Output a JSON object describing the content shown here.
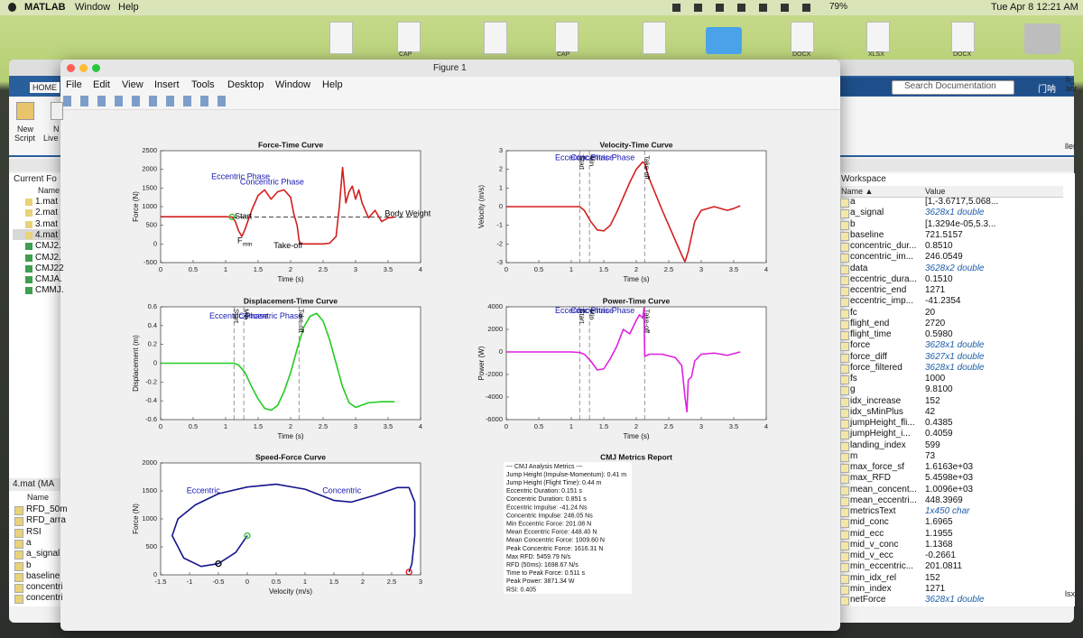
{
  "menubar": {
    "app": "MATLAB",
    "items": [
      "Window",
      "Help"
    ],
    "battery": "79%",
    "clock": "Tue Apr 8  12:21 AM"
  },
  "desktop": {
    "labels": [
      "CAP",
      "CAP",
      "DOCX",
      "XLSX",
      "DOCX"
    ]
  },
  "matlab": {
    "tab": "HOME",
    "new_script": [
      "New",
      "Script"
    ],
    "new_live": [
      "N",
      "Live"
    ],
    "folder_title": "Current Fo",
    "folder_header": "Name",
    "files": [
      "1.mat",
      "2.mat",
      "3.mat",
      "4.mat",
      "CMJ2.",
      "CMJ2.",
      "CMJ22",
      "CMJA.",
      "CMMJ."
    ],
    "details_title": "4.mat (MA",
    "details_header": "Name",
    "details": [
      "RFD_50m",
      "RFD_arra",
      "RSI",
      "a",
      "a_signal",
      "b",
      "baseline",
      "concentri",
      "concentri"
    ],
    "search": "Search Documentation",
    "user": "门呐",
    "edge_fragments": [
      "b_",
      "sor",
      "ller",
      "lsx"
    ]
  },
  "workspace": {
    "title": "Workspace",
    "columns": [
      "Name ▲",
      "Value"
    ],
    "rows": [
      {
        "name": "a",
        "value": "[1,-3.6717,5.068..."
      },
      {
        "name": "a_signal",
        "value": "3628x1 double",
        "italic": true
      },
      {
        "name": "b",
        "value": "[1.3294e-05,5.3..."
      },
      {
        "name": "baseline",
        "value": "721.5157"
      },
      {
        "name": "concentric_dur...",
        "value": "0.8510"
      },
      {
        "name": "concentric_im...",
        "value": "246.0549"
      },
      {
        "name": "data",
        "value": "3628x2 double",
        "italic": true
      },
      {
        "name": "eccentric_dura...",
        "value": "0.1510"
      },
      {
        "name": "eccentric_end",
        "value": "1271"
      },
      {
        "name": "eccentric_imp...",
        "value": "-41.2354"
      },
      {
        "name": "fc",
        "value": "20"
      },
      {
        "name": "flight_end",
        "value": "2720"
      },
      {
        "name": "flight_time",
        "value": "0.5980"
      },
      {
        "name": "force",
        "value": "3628x1 double",
        "italic": true
      },
      {
        "name": "force_diff",
        "value": "3627x1 double",
        "italic": true
      },
      {
        "name": "force_filtered",
        "value": "3628x1 double",
        "italic": true
      },
      {
        "name": "fs",
        "value": "1000"
      },
      {
        "name": "g",
        "value": "9.8100"
      },
      {
        "name": "idx_increase",
        "value": "152"
      },
      {
        "name": "idx_sMinPlus",
        "value": "42"
      },
      {
        "name": "jumpHeight_fli...",
        "value": "0.4385"
      },
      {
        "name": "jumpHeight_i...",
        "value": "0.4059"
      },
      {
        "name": "landing_index",
        "value": "599"
      },
      {
        "name": "m",
        "value": "73"
      },
      {
        "name": "max_force_sf",
        "value": "1.6163e+03"
      },
      {
        "name": "max_RFD",
        "value": "5.4598e+03"
      },
      {
        "name": "mean_concent...",
        "value": "1.0096e+03"
      },
      {
        "name": "mean_eccentri...",
        "value": "448.3969"
      },
      {
        "name": "metricsText",
        "value": "1x450 char",
        "italic": true
      },
      {
        "name": "mid_conc",
        "value": "1.6965"
      },
      {
        "name": "mid_ecc",
        "value": "1.1955"
      },
      {
        "name": "mid_v_conc",
        "value": "1.1368"
      },
      {
        "name": "mid_v_ecc",
        "value": "-0.2661"
      },
      {
        "name": "min_eccentric...",
        "value": "201.0811"
      },
      {
        "name": "min_idx_rel",
        "value": "152"
      },
      {
        "name": "min_index",
        "value": "1271"
      },
      {
        "name": "netForce",
        "value": "3628x1 double",
        "italic": true
      }
    ]
  },
  "figure": {
    "title": "Figure 1",
    "menu": [
      "File",
      "Edit",
      "View",
      "Insert",
      "Tools",
      "Desktop",
      "Window",
      "Help"
    ]
  },
  "chart_data": [
    {
      "type": "line",
      "title": "Force-Time Curve",
      "xlabel": "Time (s)",
      "ylabel": "Force (N)",
      "xlim": [
        0,
        4
      ],
      "xticks": [
        0,
        0.5,
        1,
        1.5,
        2,
        2.5,
        3,
        3.5,
        4
      ],
      "ylim": [
        -500,
        2500
      ],
      "yticks": [
        -500,
        0,
        500,
        1000,
        1500,
        2000,
        2500
      ],
      "grid": false,
      "series": [
        {
          "color": "#d41e1e",
          "x": [
            0,
            0.5,
            1.0,
            1.1,
            1.15,
            1.2,
            1.25,
            1.3,
            1.4,
            1.5,
            1.6,
            1.7,
            1.8,
            1.9,
            2.0,
            2.05,
            2.1,
            2.13,
            2.15,
            2.5,
            2.6,
            2.7,
            2.75,
            2.8,
            2.85,
            2.9,
            2.95,
            3.0,
            3.05,
            3.1,
            3.2,
            3.3,
            3.4,
            3.5,
            3.6
          ],
          "values": [
            730,
            730,
            730,
            720,
            600,
            350,
            201,
            400,
            900,
            1300,
            1450,
            1200,
            1400,
            1450,
            1250,
            800,
            500,
            100,
            0,
            0,
            20,
            200,
            1000,
            2050,
            1100,
            1400,
            1550,
            1200,
            1450,
            1100,
            700,
            900,
            600,
            700,
            720
          ]
        },
        {
          "color": "#2fbf2f",
          "marker": "circle",
          "x": [
            1.1
          ],
          "values": [
            725
          ]
        }
      ],
      "hlines": [
        {
          "value": 721.5,
          "color": "#444444",
          "style": "dashed"
        }
      ],
      "annotations": [
        {
          "text": "Eccentric Phase",
          "x": 0.78,
          "y": 1800,
          "color": "#1a1ab4"
        },
        {
          "text": "Concentric Phase",
          "x": 1.22,
          "y": 1650,
          "color": "#1a1ab4"
        },
        {
          "text": "Start",
          "x": 1.14,
          "y": 730,
          "color": "#000000"
        },
        {
          "text": "F",
          "sub": "min",
          "x": 1.18,
          "y": 80,
          "color": "#000000"
        },
        {
          "text": "Take-off",
          "x": 1.74,
          "y": -50,
          "color": "#000000"
        },
        {
          "text": "Body Weight",
          "x": 3.45,
          "y": 800,
          "color": "#000000"
        }
      ]
    },
    {
      "type": "line",
      "title": "Velocity-Time Curve",
      "xlabel": "Time (s)",
      "ylabel": "Velocity (m/s)",
      "xlim": [
        0,
        4
      ],
      "xticks": [
        0,
        0.5,
        1,
        1.5,
        2,
        2.5,
        3,
        3.5,
        4
      ],
      "ylim": [
        -3,
        3
      ],
      "yticks": [
        -3,
        -2,
        -1,
        0,
        1,
        2,
        3
      ],
      "grid": false,
      "series": [
        {
          "color": "#d41e1e",
          "x": [
            0,
            0.5,
            1.0,
            1.13,
            1.2,
            1.3,
            1.4,
            1.5,
            1.6,
            1.7,
            1.8,
            1.9,
            2.0,
            2.1,
            2.13,
            2.2,
            2.4,
            2.6,
            2.7,
            2.75,
            2.8,
            2.9,
            3.0,
            3.2,
            3.4,
            3.5,
            3.6
          ],
          "values": [
            0,
            0,
            0,
            0,
            -0.2,
            -0.8,
            -1.25,
            -1.3,
            -1.0,
            -0.3,
            0.5,
            1.3,
            2.0,
            2.4,
            2.3,
            1.5,
            -0.2,
            -1.8,
            -2.6,
            -2.95,
            -2.4,
            -0.8,
            -0.2,
            0,
            -0.2,
            -0.1,
            0.05
          ]
        }
      ],
      "vlines": [
        {
          "value": 1.13,
          "color": "#999999",
          "style": "dashed"
        },
        {
          "value": 1.28,
          "color": "#999999",
          "style": "dashed"
        },
        {
          "value": 2.13,
          "color": "#999999",
          "style": "dashed"
        }
      ],
      "annotations": [
        {
          "text": "Eccentric Phase",
          "x": 0.75,
          "y": 2.6,
          "color": "#1a1ab4"
        },
        {
          "text": "Concentric Phase",
          "x": 0.99,
          "y": 2.6,
          "color": "#1a1ab4"
        },
        {
          "text": "Start",
          "x": 1.16,
          "y": 2.75,
          "color": "#000000",
          "vertical": true
        },
        {
          "text": "Min",
          "x": 1.31,
          "y": 2.75,
          "color": "#000000",
          "vertical": true
        },
        {
          "text": "Take-off",
          "x": 2.16,
          "y": 2.75,
          "color": "#000000",
          "vertical": true
        }
      ]
    },
    {
      "type": "line",
      "title": "Displacement-Time Curve",
      "xlabel": "Time (s)",
      "ylabel": "Displacement (m)",
      "xlim": [
        0,
        4
      ],
      "xticks": [
        0,
        0.5,
        1,
        1.5,
        2,
        2.5,
        3,
        3.5,
        4
      ],
      "ylim": [
        -0.6,
        0.6
      ],
      "yticks": [
        -0.6,
        -0.4,
        -0.2,
        0,
        0.2,
        0.4,
        0.6
      ],
      "grid": false,
      "series": [
        {
          "color": "#22cc22",
          "x": [
            0,
            0.5,
            1.0,
            1.13,
            1.2,
            1.3,
            1.4,
            1.5,
            1.6,
            1.7,
            1.8,
            1.9,
            2.0,
            2.1,
            2.2,
            2.3,
            2.4,
            2.5,
            2.6,
            2.7,
            2.8,
            2.9,
            3.0,
            3.2,
            3.4,
            3.6
          ],
          "values": [
            0,
            0,
            0,
            0,
            -0.02,
            -0.1,
            -0.25,
            -0.38,
            -0.48,
            -0.5,
            -0.45,
            -0.3,
            -0.1,
            0.15,
            0.38,
            0.5,
            0.53,
            0.45,
            0.25,
            0,
            -0.25,
            -0.42,
            -0.47,
            -0.42,
            -0.41,
            -0.41
          ]
        }
      ],
      "vlines": [
        {
          "value": 1.13,
          "color": "#999999",
          "style": "dashed"
        },
        {
          "value": 1.28,
          "color": "#999999",
          "style": "dashed"
        },
        {
          "value": 2.13,
          "color": "#999999",
          "style": "dashed"
        }
      ],
      "annotations": [
        {
          "text": "Eccentric Phase",
          "x": 0.75,
          "y": 0.5,
          "color": "#1a1ab4"
        },
        {
          "text": "Concentric Phase",
          "x": 1.2,
          "y": 0.5,
          "color": "#1a1ab4"
        },
        {
          "text": "Start",
          "x": 1.16,
          "y": 0.58,
          "color": "#000000",
          "vertical": true
        },
        {
          "text": "Min",
          "x": 1.31,
          "y": 0.58,
          "color": "#000000",
          "vertical": true
        },
        {
          "text": "Take-off",
          "x": 2.16,
          "y": 0.58,
          "color": "#000000",
          "vertical": true
        }
      ]
    },
    {
      "type": "line",
      "title": "Power-Time Curve",
      "xlabel": "Time (s)",
      "ylabel": "Power (W)",
      "xlim": [
        0,
        4
      ],
      "xticks": [
        0,
        0.5,
        1,
        1.5,
        2,
        2.5,
        3,
        3.5,
        4
      ],
      "ylim": [
        -6000,
        4000
      ],
      "yticks": [
        -6000,
        -4000,
        -2000,
        0,
        2000,
        4000
      ],
      "grid": false,
      "series": [
        {
          "color": "#e020e0",
          "x": [
            0,
            1.0,
            1.13,
            1.2,
            1.3,
            1.4,
            1.5,
            1.6,
            1.7,
            1.8,
            1.9,
            2.0,
            2.05,
            2.1,
            2.12,
            2.13,
            2.2,
            2.4,
            2.6,
            2.7,
            2.75,
            2.78,
            2.8,
            2.85,
            2.9,
            3.0,
            3.2,
            3.4,
            3.6
          ],
          "values": [
            0,
            0,
            -50,
            -200,
            -800,
            -1600,
            -1500,
            -600,
            500,
            2000,
            1600,
            2800,
            3300,
            3000,
            3900,
            -400,
            -200,
            -200,
            -500,
            -1200,
            -4000,
            -5300,
            -2500,
            -2200,
            -800,
            -200,
            -100,
            -300,
            0
          ]
        }
      ],
      "vlines": [
        {
          "value": 1.13,
          "color": "#999999",
          "style": "dashed"
        },
        {
          "value": 1.28,
          "color": "#999999",
          "style": "dashed"
        },
        {
          "value": 2.13,
          "color": "#999999",
          "style": "dashed"
        }
      ],
      "annotations": [
        {
          "text": "Eccentric Phase",
          "x": 0.75,
          "y": 3650,
          "color": "#1a1ab4"
        },
        {
          "text": "Concentric Phase",
          "x": 0.99,
          "y": 3650,
          "color": "#1a1ab4"
        },
        {
          "text": "Start",
          "x": 1.16,
          "y": 3800,
          "color": "#000000",
          "vertical": true
        },
        {
          "text": "Min",
          "x": 1.31,
          "y": 3800,
          "color": "#000000",
          "vertical": true
        },
        {
          "text": "Take-off",
          "x": 2.16,
          "y": 3800,
          "color": "#000000",
          "vertical": true
        }
      ]
    },
    {
      "type": "line",
      "title": "Speed-Force Curve",
      "xlabel": "Velocity (m/s)",
      "ylabel": "Force (N)",
      "xlim": [
        -1.5,
        3
      ],
      "xticks": [
        -1.5,
        -1,
        -0.5,
        0,
        0.5,
        1,
        1.5,
        2,
        2.5,
        3
      ],
      "ylim": [
        0,
        2000
      ],
      "yticks": [
        0,
        500,
        1000,
        1500,
        2000
      ],
      "grid": false,
      "series": [
        {
          "color": "#14148c",
          "x": [
            0,
            -0.2,
            -0.5,
            -0.8,
            -1.1,
            -1.3,
            -1.2,
            -0.9,
            -0.5,
            0,
            0.5,
            1.0,
            1.5,
            1.8,
            2.2,
            2.6,
            2.8,
            2.9,
            2.9,
            2.85,
            2.8
          ],
          "values": [
            700,
            400,
            200,
            150,
            300,
            700,
            1000,
            1250,
            1450,
            1570,
            1620,
            1530,
            1330,
            1300,
            1420,
            1560,
            1560,
            1300,
            700,
            200,
            50
          ]
        },
        {
          "color": "#2fbf2f",
          "marker": "circle",
          "x": [
            0
          ],
          "values": [
            700
          ]
        },
        {
          "color": "#000000",
          "marker": "circle",
          "x": [
            -0.5
          ],
          "values": [
            200
          ]
        },
        {
          "color": "#e01010",
          "marker": "circle",
          "x": [
            2.8
          ],
          "values": [
            50
          ]
        }
      ],
      "annotations": [
        {
          "text": "Eccentric",
          "x": -1.05,
          "y": 1500,
          "color": "#1a1ab4"
        },
        {
          "text": "Concentric",
          "x": 1.3,
          "y": 1500,
          "color": "#1a1ab4"
        }
      ]
    }
  ],
  "report": {
    "title": "CMJ Metrics Report",
    "lines": [
      "--- CMJ Analysis Metrics ---",
      "Jump Height (Impulse-Momentum): 0.41 m",
      "Jump Height (Flight Time): 0.44 m",
      "Eccentric Duration: 0.151 s",
      "Concentric Duration: 0.851 s",
      "Eccentric Impulse: -41.24 Ns",
      "Concentric Impulse: 246.05 Ns",
      "Min Eccentric Force: 201.08 N",
      "Mean Eccentric Force: 448.40 N",
      "Mean Concentric Force: 1009.60 N",
      "Peak Concentric Force: 1616.31 N",
      "Max RFD: 5459.79 N/s",
      "RFD (50ms): 1698.67 N/s",
      "Time to Peak Force: 0.511 s",
      "Peak Power: 3871.34 W",
      "RSI: 0.405"
    ]
  }
}
